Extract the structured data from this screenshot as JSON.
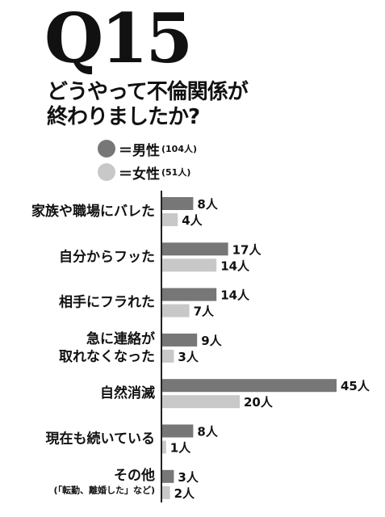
{
  "header": {
    "q_number": "Q15",
    "question_lines": [
      "どうやって不倫関係が",
      "終わりましたか?"
    ]
  },
  "legend": [
    {
      "label": "＝男性",
      "count": "(104人)",
      "color": "#777777"
    },
    {
      "label": "＝女性",
      "count": "(51人)",
      "color": "#c8c8c8"
    }
  ],
  "chart_data": {
    "type": "bar",
    "orientation": "horizontal",
    "categories": [
      [
        "家族や職場にバレた"
      ],
      [
        "自分からフッた"
      ],
      [
        "相手にフラれた"
      ],
      [
        "急に連絡が",
        "取れなくなった"
      ],
      [
        "自然消滅"
      ],
      [
        "現在も続いている"
      ],
      [
        "その他",
        "(「転勤、離婚した」など)"
      ]
    ],
    "series": [
      {
        "name": "男性",
        "color": "#777777",
        "values": [
          8,
          17,
          14,
          9,
          45,
          8,
          3
        ]
      },
      {
        "name": "女性",
        "color": "#c8c8c8",
        "values": [
          4,
          14,
          7,
          3,
          20,
          1,
          2
        ]
      }
    ],
    "value_suffix": "人"
  }
}
